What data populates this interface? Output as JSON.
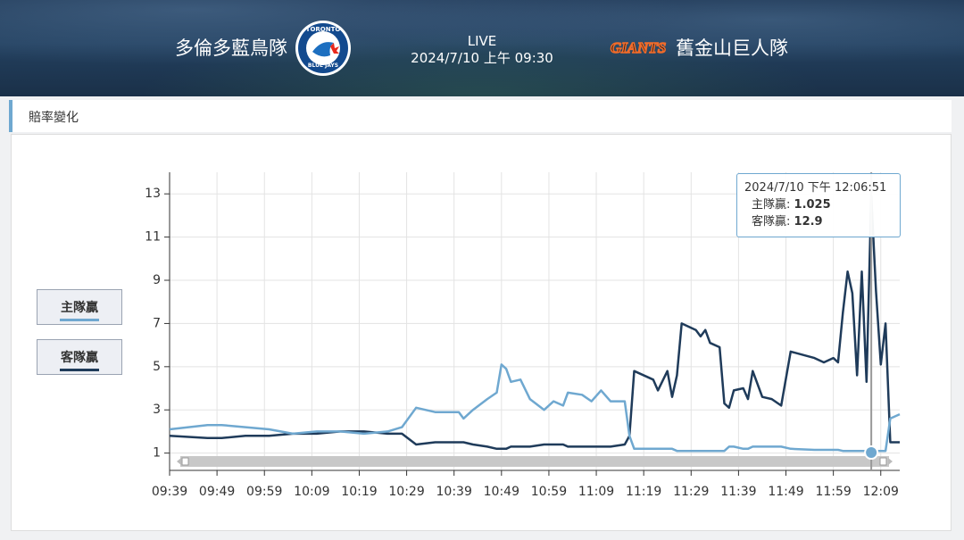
{
  "header": {
    "home_team": "多倫多藍鳥隊",
    "home_logo_text": [
      "TORONTO",
      "BLUE JAYS"
    ],
    "status": "LIVE",
    "datetime": "2024/7/10 上午 09:30",
    "away_logo_text": "GIANTS",
    "away_team": "舊金山巨人隊"
  },
  "section_title": "賠率變化",
  "chart_data": {
    "type": "line",
    "x": [
      579,
      587,
      590,
      595,
      600,
      605,
      610,
      615,
      620,
      625,
      628,
      631,
      635,
      640,
      641,
      643,
      646,
      648,
      649,
      650,
      651,
      653,
      655,
      658,
      660,
      662,
      663,
      666,
      668,
      670,
      672,
      675,
      676,
      677,
      681,
      682,
      684,
      685,
      686,
      687,
      690,
      691,
      692,
      693,
      695,
      696,
      697,
      698,
      700,
      701,
      702,
      704,
      706,
      708,
      710,
      715,
      717,
      719,
      720,
      721,
      722,
      723,
      724,
      725,
      726,
      727,
      728,
      729,
      730,
      731,
      733
    ],
    "series": [
      {
        "name": "主隊贏",
        "color": "#6fa8d0",
        "values": [
          2.1,
          2.3,
          2.3,
          2.2,
          2.1,
          1.9,
          2.0,
          2.0,
          1.9,
          2.0,
          2.2,
          3.1,
          2.9,
          2.9,
          2.6,
          3.0,
          3.5,
          3.8,
          5.1,
          4.9,
          4.3,
          4.4,
          3.5,
          3.0,
          3.4,
          3.2,
          3.8,
          3.7,
          3.4,
          3.9,
          3.4,
          3.4,
          1.8,
          1.2,
          1.2,
          1.2,
          1.2,
          1.2,
          1.1,
          1.1,
          1.1,
          1.1,
          1.1,
          1.1,
          1.1,
          1.1,
          1.3,
          1.3,
          1.2,
          1.2,
          1.3,
          1.3,
          1.3,
          1.3,
          1.2,
          1.15,
          1.15,
          1.15,
          1.15,
          1.1,
          1.1,
          1.1,
          1.1,
          1.1,
          1.1,
          1.025,
          1.1,
          1.1,
          1.1,
          2.6,
          2.8
        ]
      },
      {
        "name": "客隊贏",
        "color": "#1f3b5a",
        "values": [
          1.8,
          1.7,
          1.7,
          1.8,
          1.8,
          1.9,
          1.9,
          2.0,
          2.0,
          1.9,
          1.9,
          1.4,
          1.5,
          1.5,
          1.5,
          1.4,
          1.3,
          1.2,
          1.2,
          1.2,
          1.3,
          1.3,
          1.3,
          1.4,
          1.4,
          1.4,
          1.3,
          1.3,
          1.3,
          1.3,
          1.3,
          1.4,
          1.8,
          4.8,
          4.4,
          3.9,
          4.8,
          3.6,
          4.6,
          7.0,
          6.7,
          6.4,
          6.7,
          6.1,
          5.9,
          3.3,
          3.1,
          3.9,
          4.0,
          3.5,
          4.8,
          3.6,
          3.5,
          3.2,
          5.7,
          5.4,
          5.2,
          5.4,
          5.2,
          7.5,
          9.4,
          8.4,
          4.6,
          9.4,
          4.3,
          12.9,
          8.5,
          5.1,
          7.0,
          1.5,
          1.5
        ]
      }
    ],
    "xlim": [
      579,
      733
    ],
    "xticks": [
      {
        "value": 579,
        "label": "09:39"
      },
      {
        "value": 589,
        "label": "09:49"
      },
      {
        "value": 599,
        "label": "09:59"
      },
      {
        "value": 609,
        "label": "10:09"
      },
      {
        "value": 619,
        "label": "10:19"
      },
      {
        "value": 629,
        "label": "10:29"
      },
      {
        "value": 639,
        "label": "10:39"
      },
      {
        "value": 649,
        "label": "10:49"
      },
      {
        "value": 659,
        "label": "10:59"
      },
      {
        "value": 669,
        "label": "11:09"
      },
      {
        "value": 679,
        "label": "11:19"
      },
      {
        "value": 689,
        "label": "11:29"
      },
      {
        "value": 699,
        "label": "11:39"
      },
      {
        "value": 709,
        "label": "11:49"
      },
      {
        "value": 719,
        "label": "11:59"
      },
      {
        "value": 729,
        "label": "12:09"
      }
    ],
    "ylim": [
      0.2,
      14
    ],
    "yticks": [
      1,
      3,
      5,
      7,
      9,
      11,
      13
    ],
    "grid": true,
    "tooltip": {
      "datetime": "2024/7/10 下午 12:06:51",
      "rows": [
        {
          "label": "主隊贏:",
          "value": 1.025
        },
        {
          "label": "客隊贏:",
          "value": 12.9
        }
      ]
    }
  }
}
